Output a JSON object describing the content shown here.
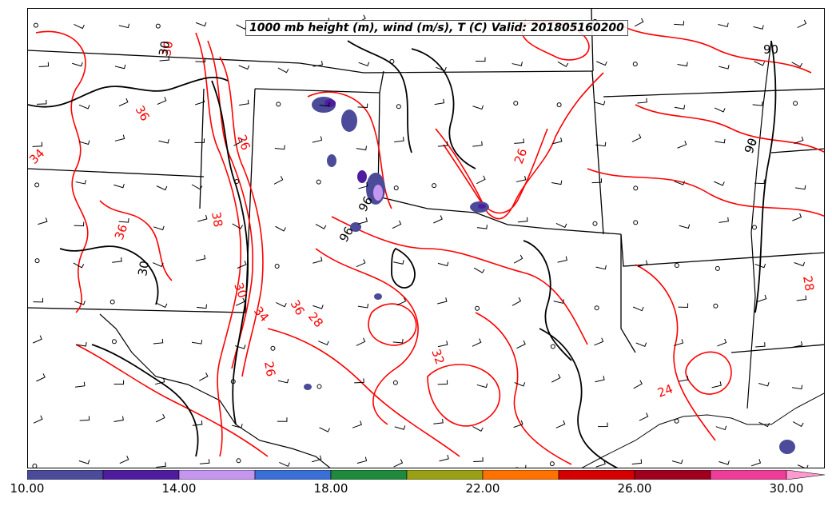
{
  "title": "1000 mb height (m), wind (m/s), T (C) Valid: 201805160200",
  "colorbar": {
    "colors": [
      "#4b4b9a",
      "#4f1ca0",
      "#c596ef",
      "#3a6fd8",
      "#1f8a3c",
      "#9aa015",
      "#ff7200",
      "#d40000",
      "#a0001e",
      "#f03c99",
      "#ff9ad0"
    ],
    "tick_labels": [
      "10.00",
      "14.00",
      "18.00",
      "22.00",
      "26.00",
      "30.00"
    ],
    "range": [
      10,
      32
    ],
    "extend": "max"
  },
  "contour_labels": {
    "red": [
      "30",
      "36",
      "34",
      "26",
      "38",
      "36",
      "30",
      "36",
      "34",
      "28",
      "32",
      "26",
      "24",
      "28",
      "26"
    ],
    "black": [
      "30",
      "90",
      "90",
      "96",
      "96",
      "30"
    ]
  },
  "colors": {
    "temperature_contour": "#ff0000",
    "height_contour": "#000000",
    "borders": "#000000"
  }
}
